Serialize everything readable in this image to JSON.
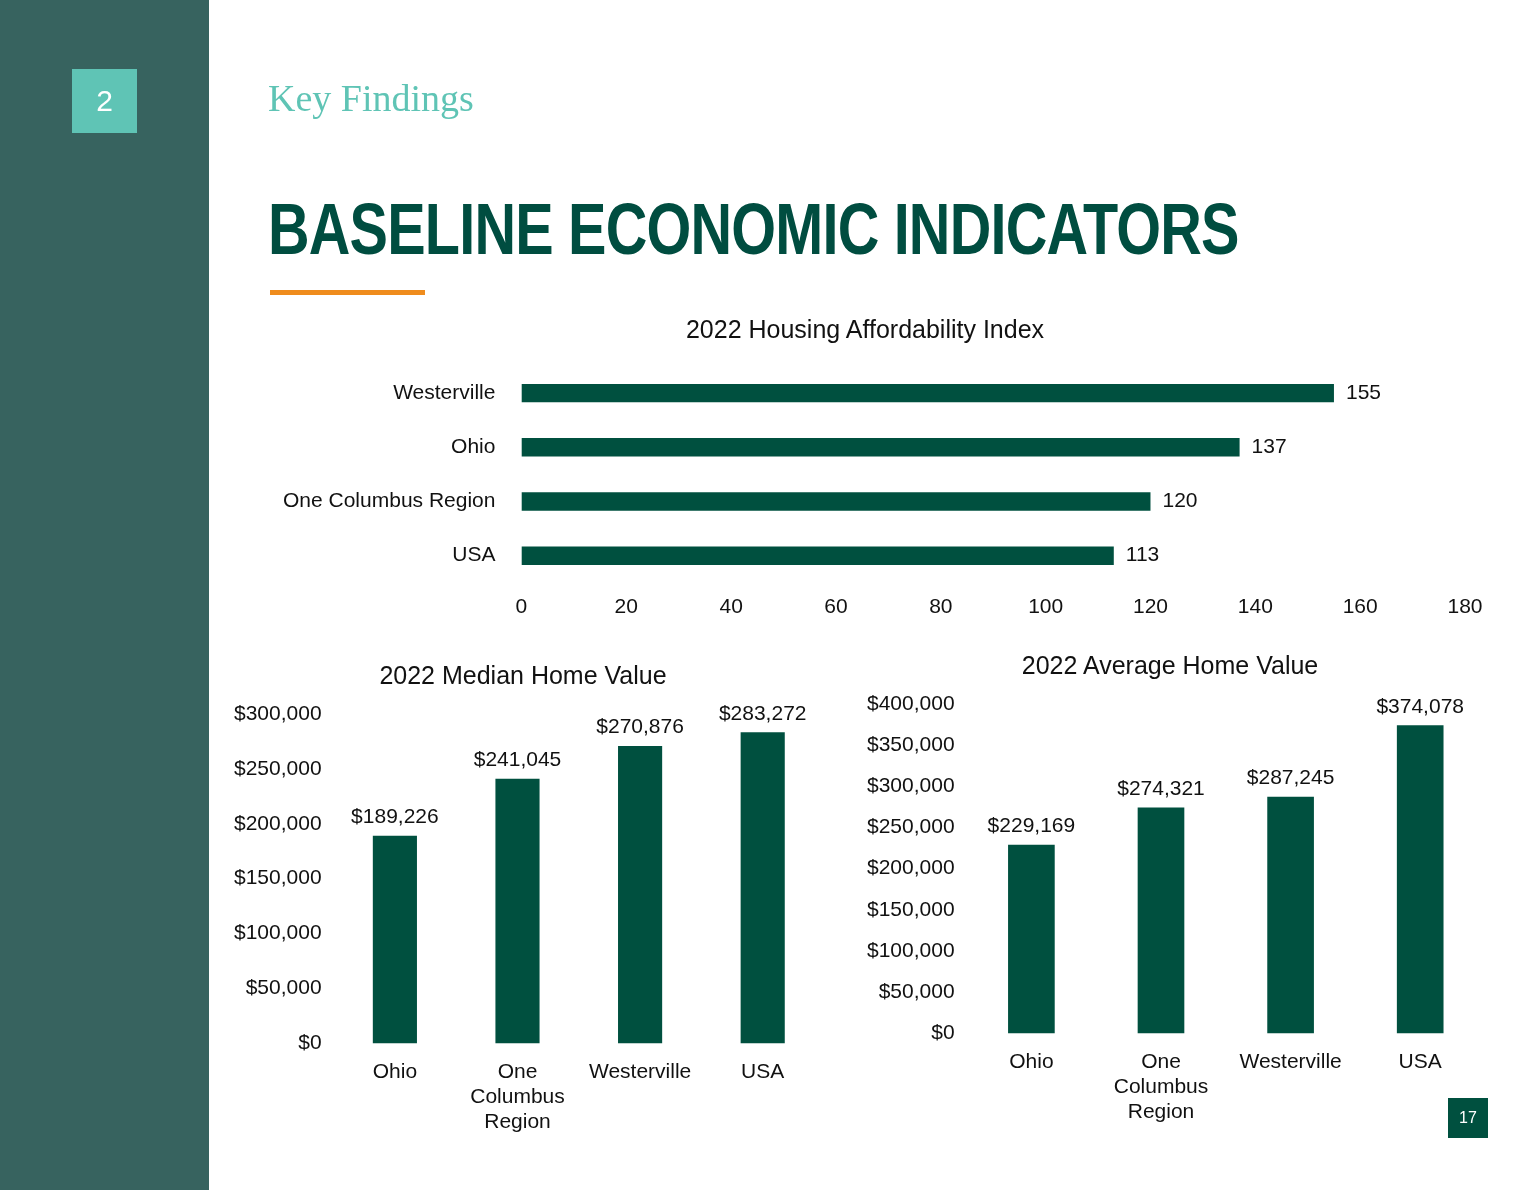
{
  "chart_data": [
    {
      "type": "other",
      "title": "BASELINE ECONOMIC INDICATORS",
      "subtitle": "Key Findings",
      "annotations": [
        "2",
        "17"
      ]
    },
    {
      "type": "bar",
      "orientation": "horizontal",
      "title": "2022 Housing Affordability Index",
      "categories": [
        "Westerville",
        "Ohio",
        "One Columbus Region",
        "USA"
      ],
      "values": [
        155,
        137,
        120,
        113
      ],
      "color": "#00503f",
      "xlim": [
        0,
        180
      ],
      "xticks": [
        0,
        20,
        40,
        60,
        80,
        100,
        120,
        140,
        160,
        180
      ],
      "data_labels": true
    },
    {
      "type": "bar",
      "title": "2022 Median Home Value",
      "categories": [
        "Ohio",
        "One Columbus Region",
        "Westerville",
        "USA"
      ],
      "values": [
        189226,
        241045,
        270876,
        283272
      ],
      "value_labels": [
        "$189,226",
        "$241,045",
        "$270,876",
        "$283,272"
      ],
      "color": "#00503f",
      "ylim": [
        0,
        300000
      ],
      "yticks": [
        {
          "value": 0,
          "label": "$0"
        },
        {
          "value": 50000,
          "label": "$50,000"
        },
        {
          "value": 100000,
          "label": "$100,000"
        },
        {
          "value": 150000,
          "label": "$150,000"
        },
        {
          "value": 200000,
          "label": "$200,000"
        },
        {
          "value": 250000,
          "label": "$250,000"
        },
        {
          "value": 300000,
          "label": "$300,000"
        }
      ]
    },
    {
      "type": "bar",
      "title": "2022 Average Home Value",
      "categories": [
        "Ohio",
        "One Columbus Region",
        "Westerville",
        "USA"
      ],
      "values": [
        229169,
        274321,
        287245,
        374078
      ],
      "value_labels": [
        "$229,169",
        "$274,321",
        "$287,245",
        "$374,078"
      ],
      "color": "#00503f",
      "ylim": [
        0,
        400000
      ],
      "yticks": [
        {
          "value": 0,
          "label": "$0"
        },
        {
          "value": 50000,
          "label": "$50,000"
        },
        {
          "value": 100000,
          "label": "$100,000"
        },
        {
          "value": 150000,
          "label": "$150,000"
        },
        {
          "value": 200000,
          "label": "$200,000"
        },
        {
          "value": 250000,
          "label": "$250,000"
        },
        {
          "value": 300000,
          "label": "$300,000"
        },
        {
          "value": 350000,
          "label": "$350,000"
        },
        {
          "value": 400000,
          "label": "$400,000"
        }
      ]
    }
  ]
}
